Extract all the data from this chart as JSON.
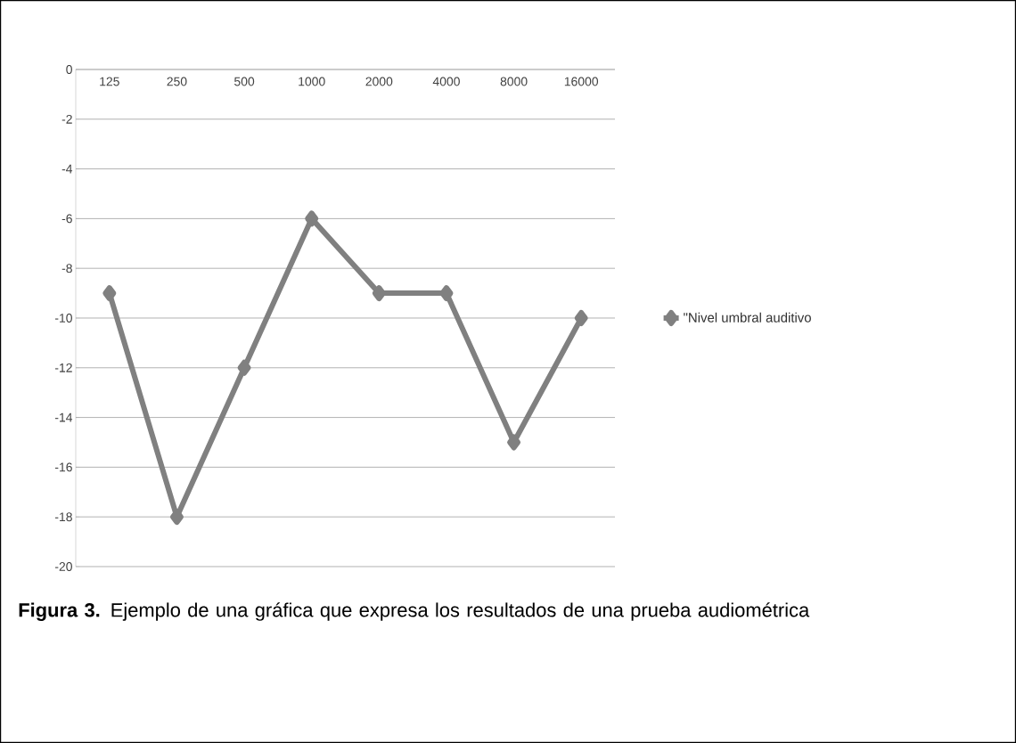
{
  "chart_data": {
    "type": "line",
    "categories": [
      "125",
      "250",
      "500",
      "1000",
      "2000",
      "4000",
      "8000",
      "16000"
    ],
    "series": [
      {
        "name": "\"Nivel umbral auditivo",
        "color": "#808080",
        "values": [
          -9,
          -18,
          -12,
          -6,
          -9,
          -9,
          -15,
          -10
        ]
      }
    ],
    "ylim": [
      -20,
      0
    ],
    "yticks": [
      -20,
      -18,
      -16,
      -14,
      -12,
      -10,
      -8,
      -6,
      -4,
      -2,
      0
    ],
    "grid": "y",
    "legend": "right",
    "marker": "diamond",
    "annotations": [
      "**Figura 3.** Ejemplo de una gráfica que expresa los resultados de una prueba audiométrica"
    ]
  }
}
